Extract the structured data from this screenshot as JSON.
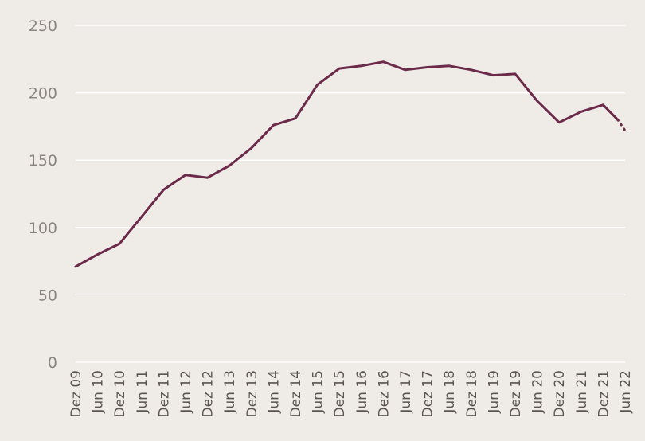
{
  "chart_data": {
    "type": "line",
    "title": "",
    "xlabel": "",
    "ylabel": "",
    "ylim": [
      0,
      250
    ],
    "yticks": [
      "0",
      "50",
      "100",
      "150",
      "200",
      "250"
    ],
    "grid": true,
    "legend": "none",
    "colors": {
      "line": "#6b2a4a",
      "background": "#efebe6",
      "grid": "#ffffff",
      "tick_y": "#8a857f",
      "tick_x": "#5a5550"
    },
    "x_ticks": [
      "Dez 09",
      "Jun 10",
      "Dez 10",
      "Jun 11",
      "Dez 11",
      "Jun 12",
      "Dez 12",
      "Jun 13",
      "Dez 13",
      "Jun 14",
      "Dez 14",
      "Jun 15",
      "Dez 15",
      "Jun 16",
      "Dez 16",
      "Jun 17",
      "Dez 17",
      "Jun 18",
      "Dez 18",
      "Jun 19",
      "Dez 19",
      "Jun 20",
      "Dez 20",
      "Jun 21",
      "Dez 21",
      "Jun 22"
    ],
    "series": [
      {
        "style": "solid",
        "x": [
          "Dez 09",
          "Jun 10",
          "Dez 10",
          "Jun 11",
          "Dez 11",
          "Jun 12",
          "Dez 12",
          "Jun 13",
          "Dez 13",
          "Jun 14",
          "Dez 14",
          "Jun 15",
          "Dez 15",
          "Jun 16",
          "Dez 16",
          "Jun 17",
          "Dez 17",
          "Jun 18",
          "Dez 18",
          "Jun 19",
          "Dez 19",
          "Jun 20",
          "Dez 20",
          "Jun 21",
          "Dez 21",
          "Apr 22"
        ],
        "values": [
          71,
          80,
          88,
          108,
          128,
          139,
          137,
          146,
          159,
          176,
          181,
          206,
          218,
          220,
          223,
          217,
          219,
          220,
          217,
          213,
          214,
          194,
          178,
          186,
          191,
          180
        ]
      },
      {
        "style": "dotted",
        "x": [
          "Apr 22",
          "Jun 22"
        ],
        "values": [
          180,
          172
        ]
      }
    ]
  }
}
